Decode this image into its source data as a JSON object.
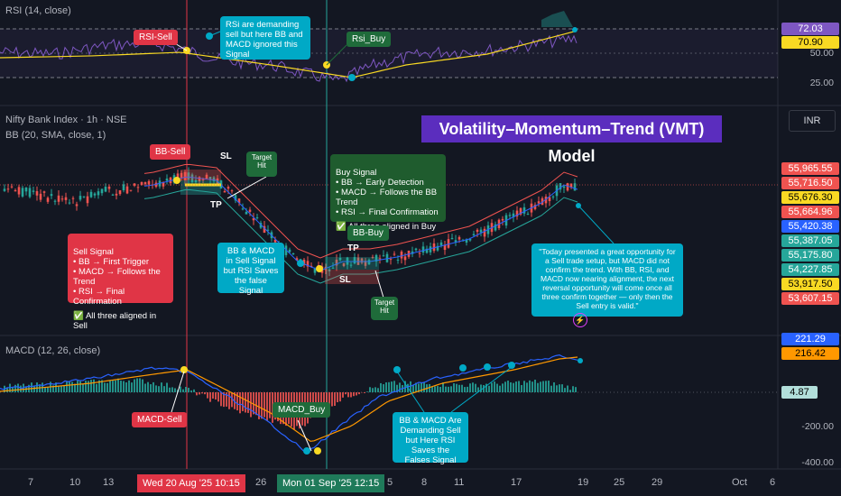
{
  "rsi": {
    "title": "RSI (14, close)",
    "tags": [
      {
        "v": "72.03",
        "c": "#7e57c2",
        "t": "#fff"
      },
      {
        "v": "70.90",
        "c": "#f9d923",
        "t": "#000"
      }
    ],
    "levels": [
      "50.00",
      "25.00"
    ]
  },
  "price": {
    "title": "Nifty Bank Index · 1h · NSE",
    "bb": "BB (20, SMA, close, 1)",
    "currency": "INR",
    "model_title": "Volatility–Momentum–Trend (VMT) Model",
    "tags": [
      {
        "v": "55,965.55",
        "c": "#ef5350",
        "t": "#fff"
      },
      {
        "v": "55,716.50",
        "c": "#ef5350",
        "t": "#fff"
      },
      {
        "v": "55,676.30",
        "c": "#f9d923",
        "t": "#000"
      },
      {
        "v": "55,664.96",
        "c": "#ef5350",
        "t": "#fff"
      },
      {
        "v": "55,420.38",
        "c": "#2962ff",
        "t": "#fff"
      },
      {
        "v": "55,387.05",
        "c": "#26a69a",
        "t": "#fff"
      },
      {
        "v": "55,175.80",
        "c": "#26a69a",
        "t": "#fff"
      },
      {
        "v": "54,227.85",
        "c": "#26a69a",
        "t": "#fff"
      },
      {
        "v": "53,917.50",
        "c": "#f9d923",
        "t": "#000"
      },
      {
        "v": "53,607.15",
        "c": "#ef5350",
        "t": "#fff"
      }
    ]
  },
  "macd": {
    "title": "MACD (12, 26, close)",
    "tags": [
      {
        "v": "221.29",
        "c": "#2962ff",
        "t": "#fff"
      },
      {
        "v": "216.42",
        "c": "#ff9800",
        "t": "#000"
      },
      {
        "v": "4.87",
        "c": "#b2dfdb",
        "t": "#000"
      }
    ],
    "levels": [
      "-200.00",
      "-400.00"
    ]
  },
  "x_axis": {
    "ticks": [
      "7",
      "10",
      "13",
      "26",
      "5",
      "8",
      "11",
      "17",
      "19",
      "25",
      "29",
      "Oct",
      "6"
    ],
    "date1": "Wed 20 Aug '25   10:15",
    "date2": "Mon 01 Sep '25   12:15"
  },
  "notes": {
    "rsi_sell": "RSI-Sell",
    "rsi_buy": "Rsi_Buy",
    "rsi_ignored": "RSi are demanding sell but here BB and MACD ignored this Signal",
    "bb_sell": "BB-Sell",
    "bb_buy": "BB-Buy",
    "sl1": "SL",
    "sl2": "SL",
    "tp1": "TP",
    "tp2": "TP",
    "target_hit1": "Target Hit",
    "target_hit2": "Target Hit",
    "buy_signal": "Buy Signal\n • BB → Early Detection\n • MACD → Follows the BB Trend\n • RSI → Final Confirmation",
    "buy_all": "✅ All three aligned in Buy",
    "sell_signal": "Sell Signal\n • BB → First Trigger\n • MACD → Follows the Trend\n • RSI → Final Confirmation",
    "sell_all": "✅ All three aligned in Sell",
    "bb_macd_false": "BB & MACD in Sell Signal but RSI Saves the false Signal",
    "opportunity": "\"Today presented a great opportunity for a Sell trade setup, but MACD did not confirm the trend. With BB, RSI, and MACD now nearing alignment, the next reversal opportunity will come once all three confirm together — only then the Sell entry is valid.\"",
    "macd_sell": "MACD-Sell",
    "macd_buy": "MACD_Buy",
    "macd_demanding": "BB & MACD Are Demanding Sell but Here RSI Saves the Falses Signal"
  },
  "chart_data": {
    "type": "candlestick",
    "panes": [
      "RSI (14, close)",
      "Nifty Bank Index · 1h · NSE",
      "MACD (12, 26, close)"
    ],
    "rsi_levels": [
      70.9,
      50.0,
      25.0
    ],
    "rsi_last": 72.03,
    "price_last": 55716.5,
    "price_range": [
      53607.15,
      55965.55
    ],
    "macd_last": {
      "macd": 221.29,
      "signal": 216.42,
      "hist": 4.87
    },
    "macd_ticks": [
      -200,
      -400
    ]
  }
}
